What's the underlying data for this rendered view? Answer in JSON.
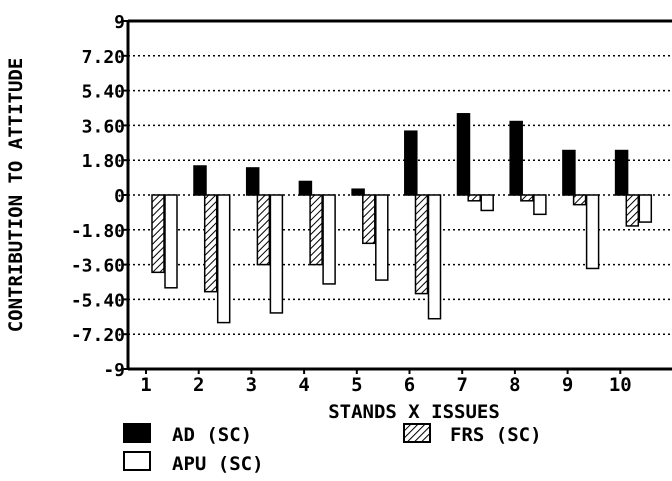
{
  "chart_data": {
    "type": "bar",
    "title": "",
    "xlabel": "STANDS X ISSUES",
    "ylabel": "CONTRIBUTION TO ATTITUDE",
    "ylim": [
      -9,
      9
    ],
    "yticks": [
      "9",
      "7.20",
      "5.40",
      "3.60",
      "1.80",
      "0",
      "-1.80",
      "-3.60",
      "-5.40",
      "-7.20",
      "-9"
    ],
    "ytick_values": [
      9,
      7.2,
      5.4,
      3.6,
      1.8,
      0,
      -1.8,
      -3.6,
      -5.4,
      -7.2,
      -9
    ],
    "categories": [
      "1",
      "2",
      "3",
      "4",
      "5",
      "6",
      "7",
      "8",
      "9",
      "10"
    ],
    "grid": "horizontal-dotted",
    "series": [
      {
        "name": "AD (SC)",
        "fill": "solid",
        "color": "#000000",
        "values": [
          0,
          1.5,
          1.4,
          0.7,
          0.3,
          3.3,
          4.2,
          3.8,
          2.3,
          2.3
        ]
      },
      {
        "name": "FRS (SC)",
        "fill": "hatched",
        "color": "#000000",
        "values": [
          -4.0,
          -5.0,
          -3.6,
          -3.6,
          -2.5,
          -5.1,
          -0.3,
          -0.3,
          -0.5,
          -1.6
        ]
      },
      {
        "name": "APU (SC)",
        "fill": "open",
        "color": "#ffffff",
        "values": [
          -4.8,
          -6.6,
          -6.1,
          -4.6,
          -4.4,
          -6.4,
          -0.8,
          -1.0,
          -3.8,
          -1.4
        ]
      }
    ],
    "legend": [
      {
        "label": "AD (SC)",
        "fill": "solid"
      },
      {
        "label": "FRS (SC)",
        "fill": "hatched"
      },
      {
        "label": "APU (SC)",
        "fill": "open"
      }
    ],
    "legend_placement": "bottom"
  }
}
